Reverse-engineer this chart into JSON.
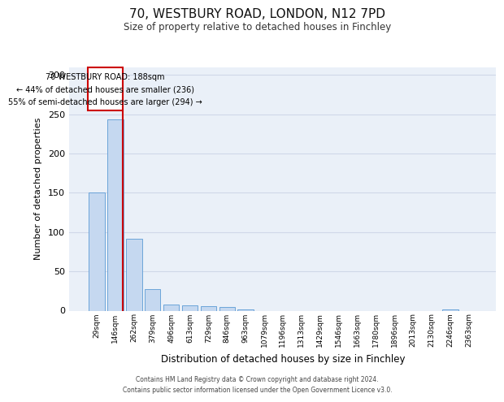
{
  "title_line1": "70, WESTBURY ROAD, LONDON, N12 7PD",
  "title_line2": "Size of property relative to detached houses in Finchley",
  "xlabel": "Distribution of detached houses by size in Finchley",
  "ylabel": "Number of detached properties",
  "categories": [
    "29sqm",
    "146sqm",
    "262sqm",
    "379sqm",
    "496sqm",
    "613sqm",
    "729sqm",
    "846sqm",
    "963sqm",
    "1079sqm",
    "1196sqm",
    "1313sqm",
    "1429sqm",
    "1546sqm",
    "1663sqm",
    "1780sqm",
    "1896sqm",
    "2013sqm",
    "2130sqm",
    "2246sqm",
    "2363sqm"
  ],
  "values": [
    150,
    243,
    91,
    27,
    8,
    7,
    6,
    5,
    2,
    0,
    0,
    0,
    0,
    0,
    0,
    0,
    0,
    0,
    0,
    2,
    0
  ],
  "bar_color": "#c5d8f0",
  "bar_edge_color": "#5b9bd5",
  "grid_color": "#d0d8e8",
  "background_color": "#eaf0f8",
  "annotation_box_color": "#ffffff",
  "annotation_border_color": "#cc0000",
  "property_line_color": "#cc0000",
  "property_bin_index": 1,
  "annotation_text_line1": "70 WESTBURY ROAD: 188sqm",
  "annotation_text_line2": "← 44% of detached houses are smaller (236)",
  "annotation_text_line3": "55% of semi-detached houses are larger (294) →",
  "ylim": [
    0,
    310
  ],
  "yticks": [
    0,
    50,
    100,
    150,
    200,
    250,
    300
  ],
  "footer_line1": "Contains HM Land Registry data © Crown copyright and database right 2024.",
  "footer_line2": "Contains public sector information licensed under the Open Government Licence v3.0."
}
